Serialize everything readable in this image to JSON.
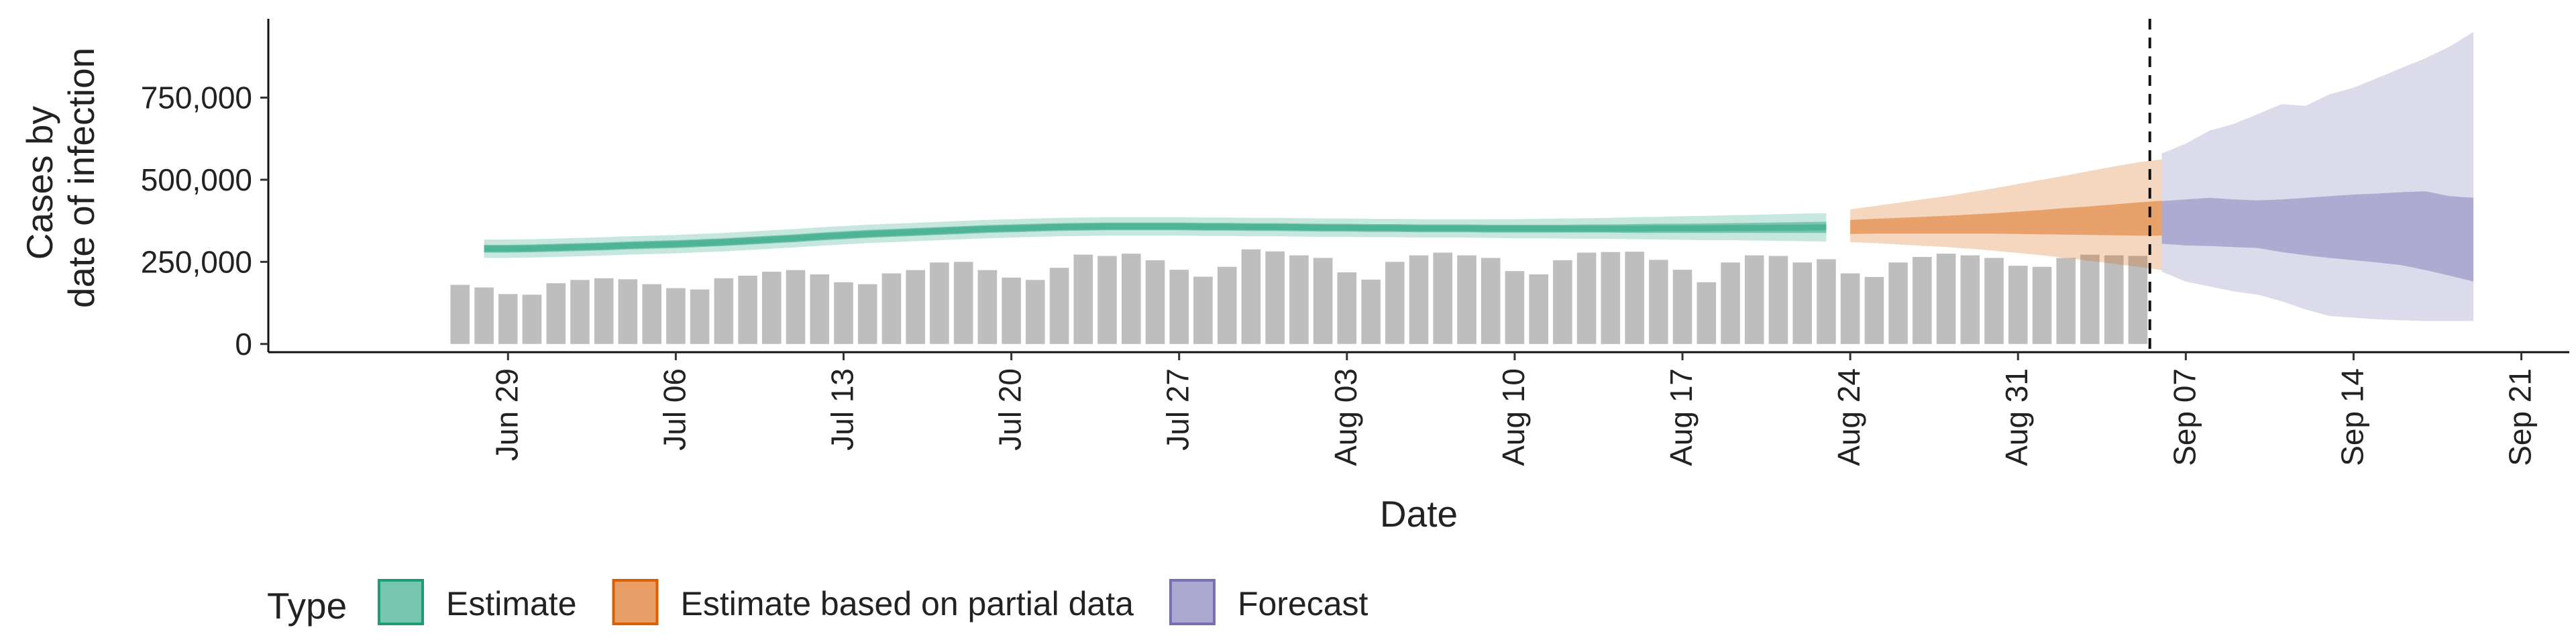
{
  "chart_data": {
    "type": "bar",
    "xlabel": "Date",
    "ylabel_lines": [
      "Cases by",
      "date of infection"
    ],
    "ylim": [
      -25000,
      990000
    ],
    "xlim": [
      "2021-06-19",
      "2021-09-23"
    ],
    "y_ticks": [
      {
        "value": 0,
        "label": "0"
      },
      {
        "value": 250000,
        "label": "250,000"
      },
      {
        "value": 500000,
        "label": "500,000"
      },
      {
        "value": 750000,
        "label": "750,000"
      }
    ],
    "x_ticks": [
      {
        "date": "2021-06-29",
        "label": "Jun 29"
      },
      {
        "date": "2021-07-06",
        "label": "Jul 06"
      },
      {
        "date": "2021-07-13",
        "label": "Jul 13"
      },
      {
        "date": "2021-07-20",
        "label": "Jul 20"
      },
      {
        "date": "2021-07-27",
        "label": "Jul 27"
      },
      {
        "date": "2021-08-03",
        "label": "Aug 03"
      },
      {
        "date": "2021-08-10",
        "label": "Aug 10"
      },
      {
        "date": "2021-08-17",
        "label": "Aug 17"
      },
      {
        "date": "2021-08-24",
        "label": "Aug 24"
      },
      {
        "date": "2021-08-31",
        "label": "Aug 31"
      },
      {
        "date": "2021-09-07",
        "label": "Sep 07"
      },
      {
        "date": "2021-09-14",
        "label": "Sep 14"
      },
      {
        "date": "2021-09-21",
        "label": "Sep 21"
      }
    ],
    "forecast_date": "2021-09-05",
    "reported_cases": {
      "start_date": "2021-06-27",
      "color": "#bebebe",
      "values": [
        180000,
        172000,
        152000,
        150000,
        185000,
        195000,
        200000,
        197000,
        182000,
        170000,
        166000,
        200000,
        208000,
        220000,
        225000,
        212000,
        188000,
        182000,
        215000,
        225000,
        248000,
        250000,
        225000,
        202000,
        195000,
        232000,
        272000,
        268000,
        275000,
        255000,
        226000,
        205000,
        235000,
        288000,
        282000,
        270000,
        262000,
        218000,
        196000,
        250000,
        270000,
        278000,
        270000,
        262000,
        222000,
        212000,
        255000,
        278000,
        280000,
        281000,
        256000,
        226000,
        188000,
        248000,
        270000,
        268000,
        248000,
        258000,
        215000,
        204000,
        248000,
        265000,
        275000,
        270000,
        262000,
        238000,
        235000,
        262000,
        272000,
        270000,
        268000
      ]
    },
    "series": [
      {
        "name": "Estimate",
        "color": "#1b9e77",
        "start_date": "2021-06-28",
        "median": [
          290000,
          290000,
          291000,
          293000,
          295000,
          297000,
          300000,
          302000,
          304000,
          307000,
          310000,
          314000,
          318000,
          322000,
          327000,
          331000,
          335000,
          338000,
          341000,
          344000,
          347000,
          350000,
          352000,
          354000,
          356000,
          357000,
          358000,
          358000,
          358000,
          358000,
          357000,
          357000,
          356000,
          356000,
          355000,
          354000,
          354000,
          353000,
          353000,
          352000,
          352000,
          352000,
          351000,
          351000,
          351000,
          351000,
          351000,
          351000,
          351000,
          352000,
          352000,
          352000,
          353000,
          353000,
          354000,
          354000,
          355000
        ],
        "lower_50": [
          278000,
          278000,
          279000,
          281000,
          283000,
          285000,
          288000,
          290000,
          292000,
          295000,
          298000,
          302000,
          306000,
          310000,
          315000,
          319000,
          323000,
          326000,
          329000,
          332000,
          335000,
          338000,
          340000,
          342000,
          344000,
          345000,
          346000,
          346000,
          346000,
          346000,
          345000,
          345000,
          344000,
          344000,
          343000,
          342000,
          342000,
          341000,
          341000,
          340000,
          340000,
          340000,
          339000,
          339000,
          339000,
          339000,
          339000,
          339000,
          338000,
          338000,
          338000,
          338000,
          338000,
          338000,
          338000,
          338000,
          338000
        ],
        "upper_50": [
          302000,
          302000,
          303000,
          305000,
          307000,
          309000,
          312000,
          314000,
          316000,
          319000,
          322000,
          326000,
          330000,
          334000,
          339000,
          343000,
          347000,
          350000,
          353000,
          356000,
          359000,
          362000,
          364000,
          366000,
          368000,
          369000,
          370000,
          370000,
          370000,
          370000,
          369000,
          369000,
          368000,
          368000,
          367000,
          366000,
          366000,
          365000,
          365000,
          364000,
          364000,
          364000,
          363000,
          363000,
          363000,
          363000,
          364000,
          364000,
          365000,
          366000,
          366000,
          367000,
          368000,
          369000,
          370000,
          371000,
          372000
        ],
        "lower_90": [
          262000,
          262000,
          263000,
          265000,
          267000,
          269000,
          272000,
          274000,
          276000,
          279000,
          282000,
          286000,
          290000,
          294000,
          299000,
          303000,
          307000,
          310000,
          313000,
          316000,
          319000,
          322000,
          324000,
          326000,
          328000,
          329000,
          330000,
          330000,
          330000,
          330000,
          329000,
          329000,
          328000,
          328000,
          327000,
          326000,
          326000,
          325000,
          325000,
          324000,
          324000,
          324000,
          323000,
          322000,
          322000,
          321000,
          320000,
          320000,
          319000,
          318000,
          317000,
          316000,
          316000,
          315000,
          314000,
          313000,
          312000
        ],
        "upper_90": [
          318000,
          318000,
          319000,
          321000,
          323000,
          325000,
          328000,
          330000,
          332000,
          335000,
          338000,
          342000,
          346000,
          350000,
          355000,
          359000,
          363000,
          366000,
          369000,
          372000,
          375000,
          378000,
          380000,
          382000,
          384000,
          385000,
          386000,
          386000,
          386000,
          386000,
          385000,
          385000,
          384000,
          384000,
          383000,
          382000,
          382000,
          381000,
          381000,
          380000,
          380000,
          380000,
          380000,
          380000,
          381000,
          382000,
          383000,
          384000,
          386000,
          387000,
          389000,
          390000,
          392000,
          393000,
          395000,
          397000,
          398000
        ]
      },
      {
        "name": "Estimate based on partial data",
        "color": "#d95f02",
        "start_date": "2021-08-24",
        "median": [
          356000,
          357000,
          358000,
          359000,
          361000,
          363000,
          365000,
          367000,
          369000,
          372000,
          375000,
          378000,
          381000,
          384000
        ],
        "lower_50": [
          335000,
          336000,
          336000,
          336000,
          336000,
          336000,
          336000,
          335000,
          334000,
          333000,
          332000,
          331000,
          330000,
          330000
        ],
        "upper_50": [
          378000,
          381000,
          384000,
          387000,
          390000,
          394000,
          398000,
          403000,
          408000,
          414000,
          419000,
          425000,
          431000,
          436000
        ],
        "lower_90": [
          310000,
          307000,
          303000,
          299000,
          295000,
          290000,
          284000,
          277000,
          270000,
          262000,
          253000,
          244000,
          235000,
          225000
        ],
        "upper_90": [
          410000,
          420000,
          430000,
          440000,
          450000,
          462000,
          474000,
          487000,
          500000,
          513000,
          527000,
          540000,
          553000,
          562000
        ]
      },
      {
        "name": "Forecast",
        "color": "#7570b3",
        "start_date": "2021-09-06",
        "median": [
          370000,
          370000,
          370000,
          370000,
          369000,
          369000,
          368000,
          368000,
          367000,
          366000,
          366000,
          365000,
          364000,
          363000
        ],
        "lower_50": [
          305000,
          300000,
          298000,
          295000,
          292000,
          280000,
          270000,
          262000,
          255000,
          248000,
          240000,
          225000,
          208000,
          190000
        ],
        "upper_50": [
          435000,
          440000,
          445000,
          440000,
          437000,
          440000,
          445000,
          450000,
          455000,
          458000,
          462000,
          465000,
          450000,
          445000
        ],
        "lower_90": [
          220000,
          190000,
          175000,
          160000,
          150000,
          130000,
          105000,
          85000,
          80000,
          75000,
          72000,
          70000,
          70000,
          70000
        ],
        "upper_90": [
          580000,
          610000,
          650000,
          670000,
          700000,
          730000,
          725000,
          760000,
          780000,
          810000,
          840000,
          870000,
          905000,
          950000
        ]
      }
    ],
    "legend": {
      "title": "Type",
      "position": "bottom",
      "items": [
        "Estimate",
        "Estimate based on partial data",
        "Forecast"
      ]
    }
  }
}
